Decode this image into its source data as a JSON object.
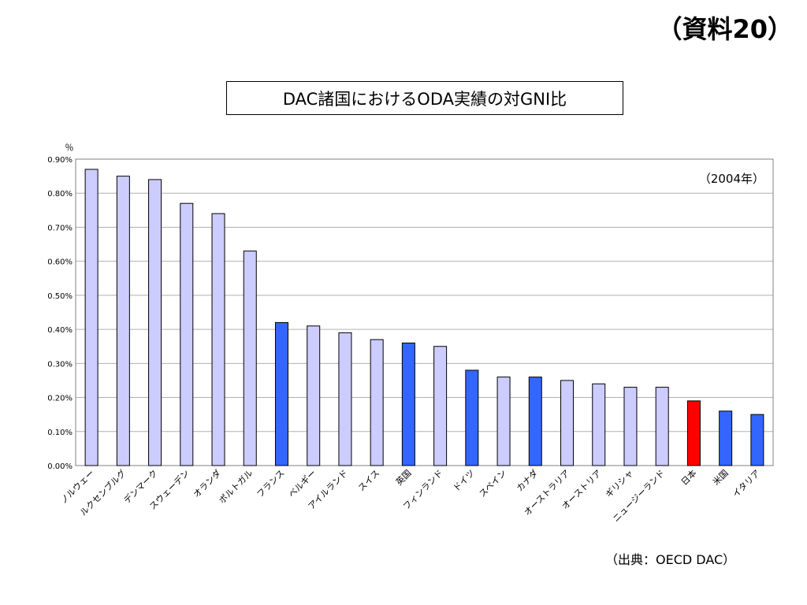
{
  "doc_label": "（資料20）",
  "source_note": "（出典：OECD DAC）",
  "chart_data": {
    "type": "bar",
    "title": "DAC諸国におけるODA実績の対GNI比",
    "subtitle": "（2004年）",
    "ylabel": "％",
    "xlabel": "",
    "ylim": [
      0,
      0.9
    ],
    "yticks": [
      "0.00%",
      "0.10%",
      "0.20%",
      "0.30%",
      "0.40%",
      "0.50%",
      "0.60%",
      "0.70%",
      "0.80%",
      "0.90%"
    ],
    "grid": true,
    "categories": [
      "ノルウェー",
      "ルクセンブルグ",
      "デンマーク",
      "スウェーデン",
      "オランダ",
      "ポルトガル",
      "フランス",
      "ベルギー",
      "アイルランド",
      "スイス",
      "英国",
      "フィンランド",
      "ドイツ",
      "スペイン",
      "カナダ",
      "オーストラリア",
      "オーストリア",
      "ギリシャ",
      "ニュージーランド",
      "日本",
      "米国",
      "イタリア"
    ],
    "values": [
      0.87,
      0.85,
      0.84,
      0.77,
      0.74,
      0.63,
      0.42,
      0.41,
      0.39,
      0.37,
      0.36,
      0.35,
      0.28,
      0.26,
      0.26,
      0.25,
      0.24,
      0.23,
      0.23,
      0.19,
      0.16,
      0.15
    ],
    "bar_colors": [
      "#ccccff",
      "#ccccff",
      "#ccccff",
      "#ccccff",
      "#ccccff",
      "#ccccff",
      "#3366ff",
      "#ccccff",
      "#ccccff",
      "#ccccff",
      "#3366ff",
      "#ccccff",
      "#3366ff",
      "#ccccff",
      "#3366ff",
      "#ccccff",
      "#ccccff",
      "#ccccff",
      "#ccccff",
      "#ff0000",
      "#3366ff",
      "#3366ff"
    ]
  }
}
